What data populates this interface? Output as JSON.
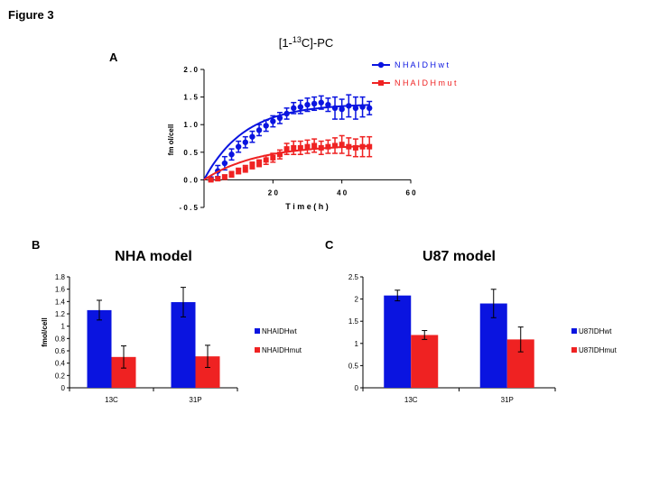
{
  "figure_title": "Figure 3",
  "panels": {
    "a": "A",
    "b": "B",
    "c": "C"
  },
  "colors": {
    "wt": "#0a14e0",
    "mut": "#ef2222",
    "axis": "#000000"
  },
  "chart_data": [
    {
      "id": "A",
      "type": "scatter",
      "title_parts": [
        "[1-",
        "13",
        "C]-PC"
      ],
      "xlabel": "T i m e  ( h )",
      "ylabel": "fm ol/cell",
      "xlim": [
        0,
        60
      ],
      "ylim": [
        -0.5,
        2.0
      ],
      "xticks": [
        20,
        40,
        60
      ],
      "xtick_labels": [
        "2 0",
        "4 0",
        "6 0"
      ],
      "yticks": [
        -0.5,
        0.0,
        0.5,
        1.0,
        1.5,
        2.0
      ],
      "ytick_labels": [
        "- 0 . 5",
        "0 . 0",
        "0 . 5",
        "1 . 0",
        "1 . 5",
        "2 . 0"
      ],
      "legend_position": "top-right",
      "series": [
        {
          "name": "N H A I D H w t",
          "color_key": "wt",
          "marker": "circle",
          "x": [
            2,
            4,
            6,
            8,
            10,
            12,
            14,
            16,
            18,
            20,
            22,
            24,
            26,
            28,
            30,
            32,
            34,
            36,
            38,
            40,
            42,
            44,
            46,
            48
          ],
          "y": [
            0.02,
            0.16,
            0.3,
            0.46,
            0.6,
            0.68,
            0.78,
            0.9,
            0.98,
            1.06,
            1.12,
            1.2,
            1.3,
            1.32,
            1.36,
            1.38,
            1.4,
            1.36,
            1.3,
            1.28,
            1.34,
            1.3,
            1.32,
            1.3
          ],
          "err": [
            0.03,
            0.1,
            0.12,
            0.1,
            0.1,
            0.1,
            0.1,
            0.1,
            0.1,
            0.1,
            0.1,
            0.1,
            0.1,
            0.12,
            0.12,
            0.12,
            0.12,
            0.12,
            0.2,
            0.18,
            0.2,
            0.2,
            0.18,
            0.12
          ],
          "fit_curve": {
            "formula": "a*(1-exp(-b*t))",
            "a": 1.38,
            "b": 0.085
          }
        },
        {
          "name": "N H A I D H m u t",
          "color_key": "mut",
          "marker": "square",
          "x": [
            2,
            4,
            6,
            8,
            10,
            12,
            14,
            16,
            18,
            20,
            22,
            24,
            26,
            28,
            30,
            32,
            34,
            36,
            38,
            40,
            42,
            44,
            46,
            48
          ],
          "y": [
            0.0,
            0.02,
            0.05,
            0.1,
            0.16,
            0.2,
            0.26,
            0.3,
            0.36,
            0.4,
            0.46,
            0.56,
            0.58,
            0.58,
            0.6,
            0.62,
            0.58,
            0.6,
            0.62,
            0.64,
            0.6,
            0.58,
            0.6,
            0.6
          ],
          "err": [
            0.02,
            0.03,
            0.04,
            0.05,
            0.05,
            0.06,
            0.06,
            0.06,
            0.08,
            0.08,
            0.08,
            0.1,
            0.12,
            0.12,
            0.12,
            0.12,
            0.12,
            0.12,
            0.14,
            0.16,
            0.16,
            0.16,
            0.18,
            0.18
          ],
          "fit_curve": {
            "formula": "a*(1-exp(-b*t))",
            "a": 0.64,
            "b": 0.065
          }
        }
      ]
    },
    {
      "id": "B",
      "type": "bar",
      "title": "NHA model",
      "ylabel": "fmol/cell",
      "categories": [
        "13C",
        "31P"
      ],
      "ylim": [
        0,
        1.8
      ],
      "yticks": [
        0,
        0.2,
        0.4,
        0.6,
        0.8,
        1,
        1.2,
        1.4,
        1.6,
        1.8
      ],
      "ytick_labels": [
        "0",
        "0.2",
        "0.4",
        "0.6",
        "0.8",
        "1",
        "1.2",
        "1.4",
        "1.6",
        "1.8"
      ],
      "legend_position": "right",
      "series": [
        {
          "name": "NHAIDHwt",
          "color_key": "wt",
          "values": [
            1.26,
            1.39
          ],
          "err": [
            0.16,
            0.24
          ]
        },
        {
          "name": "NHAIDHmut",
          "color_key": "mut",
          "values": [
            0.5,
            0.51
          ],
          "err": [
            0.18,
            0.18
          ]
        }
      ]
    },
    {
      "id": "C",
      "type": "bar",
      "title": "U87 model",
      "ylabel": "",
      "categories": [
        "13C",
        "31P"
      ],
      "ylim": [
        0,
        2.5
      ],
      "yticks": [
        0,
        0.5,
        1,
        1.5,
        2,
        2.5
      ],
      "ytick_labels": [
        "0",
        "0.5",
        "1",
        "1.5",
        "2",
        "2.5"
      ],
      "legend_position": "right",
      "series": [
        {
          "name": "U87IDHwt",
          "color_key": "wt",
          "values": [
            2.08,
            1.9
          ],
          "err": [
            0.12,
            0.32
          ]
        },
        {
          "name": "U87IDHmut",
          "color_key": "mut",
          "values": [
            1.19,
            1.09
          ],
          "err": [
            0.1,
            0.28
          ]
        }
      ]
    }
  ]
}
